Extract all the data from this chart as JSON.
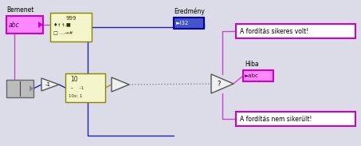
{
  "bg_color": "#dcdce8",
  "wire_pink": "#cc44cc",
  "wire_blue": "#2222aa",
  "wire_tan": "#aa8833",
  "wire_dot": "#888888",
  "bemenet_label": "Bemenet",
  "eredmeny_label": "Eredmény",
  "hiba_label": "Hiba",
  "success_text": "A fordítás sikeres volt!",
  "fail_text": "A fordítás nem sikerült!",
  "abc_text": "abc",
  "i32_text": "►I32",
  "abc2_text": "►abc",
  "neg1_text": "-1",
  "n999_text": "999",
  "log_text1": "10",
  "log_text2": "~    -1",
  "log_text3": "10x: 1"
}
